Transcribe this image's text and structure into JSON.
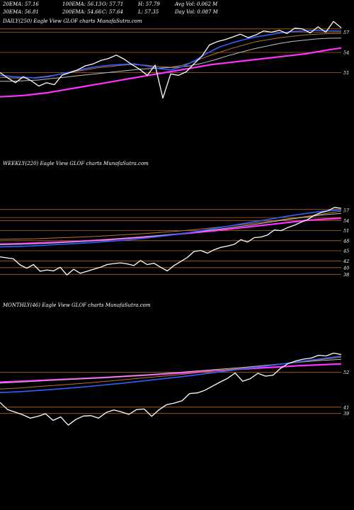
{
  "header": {
    "line1": [
      "20EMA: 57.16",
      "100EMA: 56.13",
      "O: 57.71",
      "H: 57.79",
      "Avg Vol: 0.062  M"
    ],
    "line2": [
      "30EMA: 56.81",
      "200EMA: 54.66",
      "C: 57.64",
      "L: 57.35",
      "Day Vol: 0.087  M"
    ]
  },
  "colors": {
    "background": "#000000",
    "price": "#ffffff",
    "ema_blue": "#2f5fff",
    "ema_magenta": "#ff33ff",
    "ema_brown": "#b87333",
    "ema_gray": "#bfbfbf",
    "level_line": "#b5651d"
  },
  "chart_data": [
    {
      "type": "line",
      "title": "DAILY(250) Eagle   View  GLOF charts MunafaSutra.com",
      "y_ticks": [
        57,
        54,
        51
      ],
      "levels": [
        57.5,
        57,
        54,
        51
      ],
      "ylim": [
        46,
        58
      ],
      "series": [
        {
          "role": "price",
          "values": [
            51,
            50.2,
            49.5,
            50.4,
            49.8,
            49.0,
            49.5,
            49.2,
            50.6,
            51.0,
            51.4,
            52.0,
            52.3,
            52.8,
            53.1,
            53.6,
            53.0,
            52.2,
            51.5,
            50.6,
            52.1,
            47.2,
            50.8,
            50.6,
            51.1,
            52.3,
            53.4,
            55.1,
            55.6,
            55.9,
            56.3,
            56.7,
            56.2,
            56.6,
            57.2,
            57.0,
            57.3,
            56.8,
            57.6,
            57.5,
            56.9,
            57.8,
            57.0,
            58.6,
            57.64
          ]
        },
        {
          "role": "ema_magenta",
          "values": [
            47.4,
            47.5,
            47.6,
            47.8,
            48.0,
            48.3,
            48.6,
            48.9,
            49.2,
            49.5,
            49.8,
            50.1,
            50.4,
            50.7,
            51.0,
            51.3,
            51.6,
            51.9,
            52.2,
            52.4,
            52.6,
            52.8,
            53.0,
            53.2,
            53.4,
            53.6,
            53.8,
            54.1,
            54.4,
            54.66
          ]
        },
        {
          "role": "ema_blue",
          "values": [
            50.6,
            50.4,
            50.3,
            50.2,
            50.4,
            50.8,
            51.2,
            51.6,
            51.9,
            52.1,
            52.2,
            52.3,
            52.0,
            51.6,
            51.4,
            51.9,
            52.8,
            53.9,
            54.8,
            55.4,
            55.9,
            56.3,
            56.6,
            56.9,
            57.1,
            57.2,
            57.3,
            57.2,
            57.16
          ]
        },
        {
          "role": "ema_brown",
          "values": [
            50.3,
            50.2,
            50.2,
            50.3,
            50.5,
            50.8,
            51.1,
            51.4,
            51.7,
            51.9,
            52.1,
            52.2,
            52.1,
            51.9,
            51.8,
            52.1,
            52.7,
            53.4,
            54.0,
            54.6,
            55.1,
            55.6,
            55.9,
            56.2,
            56.4,
            56.6,
            56.7,
            56.8,
            56.81
          ]
        },
        {
          "role": "ema_gray",
          "values": [
            49.7,
            49.7,
            49.8,
            49.9,
            50.1,
            50.3,
            50.5,
            50.7,
            50.9,
            51.1,
            51.3,
            51.5,
            51.6,
            51.7,
            51.8,
            52.0,
            52.4,
            52.9,
            53.5,
            54.0,
            54.5,
            54.9,
            55.3,
            55.6,
            55.8,
            56.0,
            56.1,
            56.13
          ]
        }
      ]
    },
    {
      "type": "line",
      "title": "WEEKLY(220) Eagle   View  GLOF charts MunafaSutra.com",
      "y_ticks": [
        57,
        54,
        51,
        48,
        45,
        42,
        40,
        38
      ],
      "levels": [
        57.3,
        54.9,
        54,
        51,
        48,
        45,
        42,
        40,
        38
      ],
      "ylim": [
        37,
        58.5
      ],
      "series": [
        {
          "role": "price",
          "values": [
            43.2,
            42.9,
            42.6,
            40.8,
            39.8,
            40.9,
            38.9,
            39.3,
            39.0,
            40.1,
            37.8,
            39.5,
            38.3,
            38.9,
            39.5,
            40.1,
            40.9,
            41.2,
            41.4,
            41.1,
            40.6,
            42.1,
            40.9,
            41.3,
            40.1,
            39.0,
            40.6,
            41.8,
            43.0,
            44.8,
            45.1,
            44.3,
            45.3,
            46.0,
            46.4,
            46.9,
            48.3,
            47.6,
            48.9,
            49.1,
            49.7,
            51.2,
            51.0,
            51.9,
            52.6,
            53.5,
            54.3,
            55.6,
            56.4,
            56.9,
            57.9,
            57.64
          ]
        },
        {
          "role": "ema_magenta",
          "values": [
            47.0,
            47.1,
            47.3,
            47.5,
            47.7,
            48.0,
            48.3,
            48.7,
            49.1,
            49.5,
            50.0,
            50.5,
            51.0,
            51.6,
            52.2,
            52.8,
            53.4,
            54.0,
            54.4,
            54.66
          ]
        },
        {
          "role": "ema_blue",
          "values": [
            46.2,
            46.3,
            46.5,
            46.8,
            47.1,
            47.4,
            47.8,
            48.2,
            48.7,
            49.3,
            50.0,
            50.8,
            51.7,
            52.6,
            53.5,
            54.4,
            55.3,
            56.1,
            56.8,
            57.16
          ]
        },
        {
          "role": "ema_brown",
          "values": [
            48.4,
            48.5,
            48.6,
            48.8,
            49.0,
            49.2,
            49.5,
            49.8,
            50.1,
            50.5,
            50.9,
            51.4,
            51.9,
            52.5,
            53.1,
            53.8,
            54.5,
            55.2,
            56.0,
            56.81
          ]
        },
        {
          "role": "ema_gray",
          "values": [
            46.8,
            46.9,
            47.1,
            47.3,
            47.6,
            47.9,
            48.3,
            48.7,
            49.1,
            49.6,
            50.1,
            50.7,
            51.3,
            52.0,
            52.7,
            53.5,
            54.3,
            55.0,
            55.7,
            56.13
          ]
        }
      ]
    },
    {
      "type": "line",
      "title": "MONTHLY(46) Eagle   View  GLOF charts MunafaSutra.com",
      "y_ticks": [
        52,
        41,
        39
      ],
      "levels": [
        52,
        41,
        39
      ],
      "ylim": [
        34,
        60
      ],
      "series": [
        {
          "role": "price",
          "values": [
            42.5,
            40.2,
            39.4,
            38.6,
            37.5,
            38.1,
            38.9,
            36.8,
            37.9,
            35.3,
            37.1,
            38.2,
            38.3,
            37.5,
            39.3,
            40.1,
            39.5,
            38.7,
            40.2,
            40.4,
            38.1,
            40.2,
            41.8,
            42.3,
            43.0,
            45.3,
            45.5,
            46.3,
            47.6,
            48.9,
            50.1,
            51.8,
            49.2,
            50.0,
            51.7,
            50.8,
            51.1,
            53.3,
            54.8,
            55.6,
            56.2,
            56.5,
            57.4,
            57.2,
            58.1,
            57.64
          ]
        },
        {
          "role": "ema_magenta",
          "values": [
            48.9,
            49.2,
            49.5,
            49.8,
            50.1,
            50.4,
            50.8,
            51.2,
            51.6,
            52.0,
            52.5,
            52.9,
            53.3,
            53.7,
            54.1,
            54.4,
            54.66
          ]
        },
        {
          "role": "ema_blue",
          "values": [
            45.6,
            45.9,
            46.3,
            46.8,
            47.3,
            47.9,
            48.5,
            49.2,
            49.9,
            50.6,
            51.4,
            52.2,
            53.0,
            53.8,
            54.6,
            55.5,
            56.3,
            57.16
          ]
        },
        {
          "role": "ema_brown",
          "values": [
            46.7,
            47.1,
            47.6,
            48.1,
            48.6,
            49.2,
            49.8,
            50.4,
            51.0,
            51.7,
            52.4,
            53.1,
            53.8,
            54.5,
            55.2,
            56.0,
            56.81
          ]
        },
        {
          "role": "ema_gray",
          "values": [
            48.6,
            49.0,
            49.4,
            49.8,
            50.2,
            50.7,
            51.2,
            51.8,
            52.4,
            53.0,
            53.6,
            54.3,
            55.0,
            55.7,
            56.13
          ]
        }
      ]
    }
  ]
}
